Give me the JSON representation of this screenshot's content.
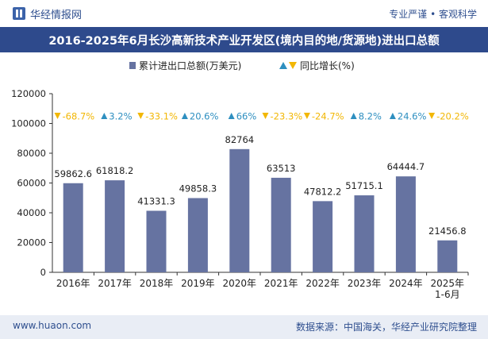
{
  "header": {
    "brand": "华经情报网",
    "motto": "专业严谨 • 客观科学"
  },
  "footer": {
    "site": "www.huaon.com",
    "source": "数据来源：中国海关，华经产业研究院整理"
  },
  "colors": {
    "bar": "#6673a1",
    "up": "#2e8fc0",
    "down": "#f2b705",
    "title_bg": "#2e4a8c"
  },
  "chart_data": {
    "type": "bar",
    "title": "2016-2025年6月长沙高新技术产业开发区(境内目的地/货源地)进出口总额",
    "categories": [
      "2016年",
      "2017年",
      "2018年",
      "2019年",
      "2020年",
      "2021年",
      "2022年",
      "2023年",
      "2024年",
      "2025年 1-6月"
    ],
    "series": [
      {
        "name": "累计进出口总额(万美元)",
        "values": [
          59862.6,
          61818.2,
          41331.3,
          49858.3,
          82764,
          63513,
          47812.2,
          51715.1,
          64444.7,
          21456.8
        ],
        "labels": [
          "59862.6",
          "61818.2",
          "41331.3",
          "49858.3",
          "82764",
          "63513",
          "47812.2",
          "51715.1",
          "64444.7",
          "21456.8"
        ]
      },
      {
        "name": "同比增长(%)",
        "values": [
          -68.7,
          3.2,
          -33.1,
          20.6,
          66,
          -23.3,
          -24.7,
          8.2,
          24.6,
          -20.2
        ],
        "labels": [
          "-68.7%",
          "3.2%",
          "-33.1%",
          "20.6%",
          "66%",
          "-23.3%",
          "-24.7%",
          "8.2%",
          "24.6%",
          "-20.2%"
        ]
      }
    ],
    "yticks": [
      "0",
      "20000",
      "40000",
      "60000",
      "80000",
      "100000",
      "120000"
    ],
    "ylim": [
      0,
      120000
    ],
    "legend_position": "top-center",
    "grid": false
  }
}
